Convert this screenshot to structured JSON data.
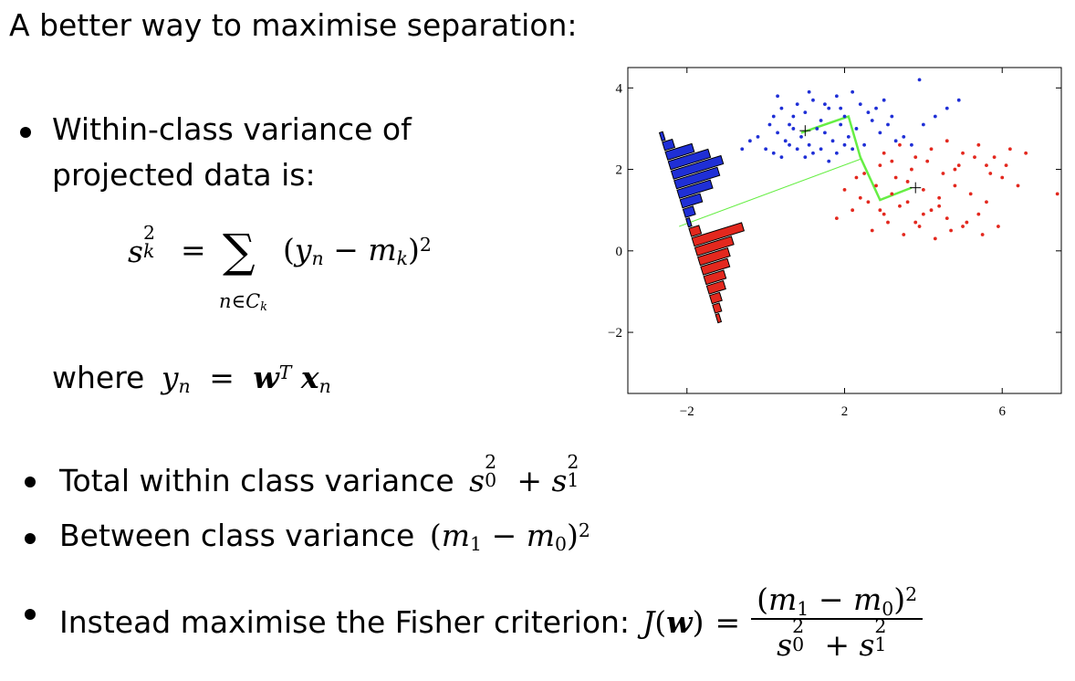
{
  "slide": {
    "title": "A better way to maximise separation:",
    "bullet1": {
      "line1": "Within-class variance of",
      "line2": "projected data is:"
    },
    "equation": {
      "lhs_var": "s",
      "lhs_sup": "2",
      "lhs_sub": "k",
      "equals": "=",
      "sum": "∑",
      "sum_sub_n": "n",
      "sum_sub_in": "∈",
      "sum_sub_c": "C",
      "sum_sub_k": "k",
      "paren_open": "(",
      "y": "y",
      "y_sub": "n",
      "minus": "−",
      "m": "m",
      "m_sub": "k",
      "paren_close": ")",
      "power": "2"
    },
    "where": {
      "word": "where",
      "y": "y",
      "y_sub": "n",
      "equals": "=",
      "w": "w",
      "T": "T",
      "x": "x",
      "x_sub": "n"
    },
    "bullet2": {
      "text": "Total within class variance",
      "s0": "s",
      "s0_sup": "2",
      "s0_sub": "0",
      "plus": "+",
      "s1": "s",
      "s1_sup": "2",
      "s1_sub": "1"
    },
    "bullet3": {
      "text": "Between class variance",
      "open": "(",
      "m1": "m",
      "m1_sub": "1",
      "minus": "−",
      "m0": "m",
      "m0_sub": "0",
      "close": ")",
      "power": "2"
    },
    "bullet4": {
      "text": "Instead maximise the Fisher criterion:",
      "J": "J",
      "open": "(",
      "w": "w",
      "close": ")",
      "equals": "=",
      "num_open": "(",
      "num_m1": "m",
      "num_m1_sub": "1",
      "num_minus": "−",
      "num_m0": "m",
      "num_m0_sub": "0",
      "num_close": ")",
      "num_power": "2",
      "den_s0": "s",
      "den_s0_sup": "2",
      "den_s0_sub": "0",
      "den_plus": "+",
      "den_s1": "s",
      "den_s1_sup": "2",
      "den_s1_sub": "1"
    }
  },
  "chart_data": {
    "type": "scatter",
    "title": "",
    "xlabel": "",
    "ylabel": "",
    "xlim": [
      -3.5,
      7.5
    ],
    "ylim": [
      -3.5,
      4.5
    ],
    "x_ticks": [
      {
        "value": -2,
        "label": "−2"
      },
      {
        "value": 2,
        "label": "2"
      },
      {
        "value": 6,
        "label": "6"
      }
    ],
    "y_ticks": [
      {
        "value": -2,
        "label": "−2"
      },
      {
        "value": 0,
        "label": "0"
      },
      {
        "value": 2,
        "label": "2"
      },
      {
        "value": 4,
        "label": "4"
      }
    ],
    "grid": false,
    "series": [
      {
        "color": "#1f2fd6",
        "points": [
          [
            0.2,
            3.3
          ],
          [
            0.4,
            3.5
          ],
          [
            0.6,
            3.1
          ],
          [
            0.8,
            3.6
          ],
          [
            1.0,
            3.4
          ],
          [
            1.2,
            3.7
          ],
          [
            1.4,
            3.2
          ],
          [
            1.6,
            3.5
          ],
          [
            1.8,
            3.8
          ],
          [
            2.0,
            3.3
          ],
          [
            0.3,
            2.9
          ],
          [
            0.5,
            2.7
          ],
          [
            0.7,
            3.0
          ],
          [
            0.9,
            2.8
          ],
          [
            1.1,
            2.6
          ],
          [
            1.3,
            3.0
          ],
          [
            1.5,
            2.9
          ],
          [
            1.7,
            2.7
          ],
          [
            1.9,
            3.1
          ],
          [
            2.1,
            2.8
          ],
          [
            2.3,
            3.0
          ],
          [
            2.5,
            2.6
          ],
          [
            2.7,
            3.2
          ],
          [
            2.9,
            2.9
          ],
          [
            3.1,
            3.1
          ],
          [
            -0.6,
            2.5
          ],
          [
            -0.4,
            2.7
          ],
          [
            -0.2,
            2.8
          ],
          [
            0.0,
            2.5
          ],
          [
            0.2,
            2.4
          ],
          [
            0.4,
            2.3
          ],
          [
            0.6,
            2.6
          ],
          [
            0.8,
            2.5
          ],
          [
            1.0,
            2.3
          ],
          [
            1.2,
            2.4
          ],
          [
            1.4,
            2.5
          ],
          [
            1.6,
            2.2
          ],
          [
            1.8,
            2.4
          ],
          [
            2.0,
            2.6
          ],
          [
            2.2,
            2.5
          ],
          [
            3.3,
            2.7
          ],
          [
            3.5,
            2.8
          ],
          [
            3.7,
            2.6
          ],
          [
            4.0,
            3.1
          ],
          [
            4.3,
            3.3
          ],
          [
            4.6,
            3.5
          ],
          [
            4.9,
            3.7
          ],
          [
            3.9,
            4.2
          ],
          [
            2.4,
            3.6
          ],
          [
            2.6,
            3.4
          ],
          [
            0.1,
            3.1
          ],
          [
            0.3,
            3.8
          ],
          [
            0.7,
            3.3
          ],
          [
            1.1,
            3.9
          ],
          [
            1.5,
            3.6
          ],
          [
            1.9,
            3.5
          ],
          [
            2.2,
            3.9
          ],
          [
            2.8,
            3.5
          ],
          [
            3.0,
            3.7
          ],
          [
            3.2,
            3.3
          ]
        ]
      },
      {
        "color": "#e3281e",
        "points": [
          [
            1.8,
            0.8
          ],
          [
            2.2,
            1.0
          ],
          [
            2.6,
            1.2
          ],
          [
            3.0,
            0.9
          ],
          [
            3.4,
            1.1
          ],
          [
            3.8,
            0.7
          ],
          [
            4.2,
            1.0
          ],
          [
            4.6,
            0.8
          ],
          [
            5.0,
            0.6
          ],
          [
            5.4,
            0.9
          ],
          [
            2.0,
            1.5
          ],
          [
            2.4,
            1.3
          ],
          [
            2.8,
            1.6
          ],
          [
            3.2,
            1.4
          ],
          [
            3.6,
            1.7
          ],
          [
            4.0,
            1.5
          ],
          [
            4.4,
            1.3
          ],
          [
            4.8,
            1.6
          ],
          [
            5.2,
            1.4
          ],
          [
            5.6,
            1.2
          ],
          [
            2.5,
            1.9
          ],
          [
            2.9,
            2.1
          ],
          [
            3.3,
            1.8
          ],
          [
            3.7,
            2.0
          ],
          [
            4.1,
            2.2
          ],
          [
            4.5,
            1.9
          ],
          [
            4.9,
            2.1
          ],
          [
            5.3,
            2.3
          ],
          [
            5.7,
            1.9
          ],
          [
            6.1,
            2.1
          ],
          [
            3.0,
            2.4
          ],
          [
            3.4,
            2.6
          ],
          [
            3.8,
            2.3
          ],
          [
            4.2,
            2.5
          ],
          [
            4.6,
            2.7
          ],
          [
            5.0,
            2.4
          ],
          [
            5.4,
            2.6
          ],
          [
            5.8,
            2.3
          ],
          [
            6.2,
            2.5
          ],
          [
            6.6,
            2.4
          ],
          [
            2.7,
            0.5
          ],
          [
            3.1,
            0.7
          ],
          [
            3.5,
            0.4
          ],
          [
            3.9,
            0.6
          ],
          [
            4.3,
            0.3
          ],
          [
            4.7,
            0.5
          ],
          [
            5.1,
            0.7
          ],
          [
            5.5,
            0.4
          ],
          [
            5.9,
            0.6
          ],
          [
            7.4,
            1.4
          ],
          [
            6.4,
            1.6
          ],
          [
            6.0,
            1.8
          ],
          [
            3.6,
            1.2
          ],
          [
            4.4,
            1.1
          ],
          [
            2.3,
            1.8
          ],
          [
            3.2,
            2.2
          ],
          [
            4.8,
            2.0
          ],
          [
            5.6,
            2.1
          ],
          [
            2.9,
            1.0
          ],
          [
            4.0,
            0.9
          ]
        ]
      }
    ],
    "means": [
      [
        1.0,
        2.95
      ],
      [
        3.8,
        1.55
      ]
    ],
    "projection_color": "#66ee44",
    "histogram": {
      "blue_bars": [
        0.1,
        0.3,
        0.8,
        1.2,
        1.5,
        1.3,
        1.0,
        0.6,
        0.3,
        0.1
      ],
      "red_bars": [
        0.3,
        1.5,
        1.1,
        0.9,
        0.8,
        0.6,
        0.5,
        0.3,
        0.2,
        0.1
      ],
      "blue_color": "#1f2fd6",
      "red_color": "#e3281e"
    }
  }
}
